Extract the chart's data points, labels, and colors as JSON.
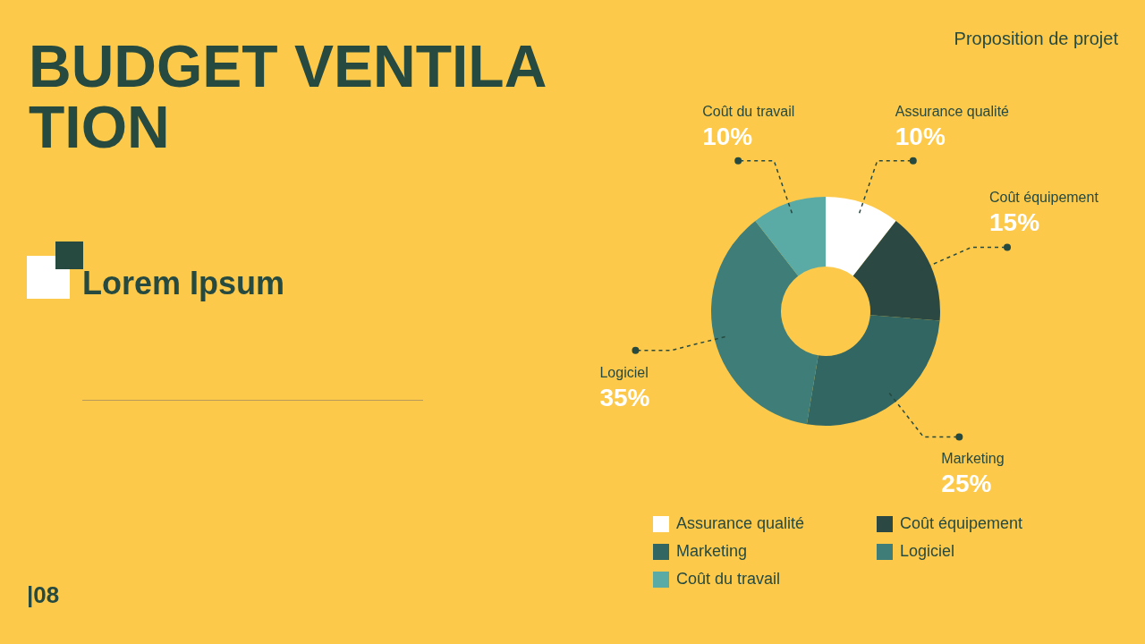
{
  "chart_data": {
    "type": "donut",
    "title": "BUDGET VENTILATION",
    "subtitle": "Proposition de projet",
    "annotations": [
      "Lorem Ipsum",
      "|08"
    ],
    "categories": [
      "Assurance qualité",
      "Coût équipement",
      "Marketing",
      "Logiciel",
      "Coût du travail"
    ],
    "values": [
      10,
      15,
      25,
      35,
      10
    ],
    "colors": [
      "#ffffff",
      "#2b4842",
      "#326662",
      "#3f7e78",
      "#5aaaa5"
    ],
    "value_labels": [
      "10%",
      "15%",
      "25%",
      "35%",
      "10%"
    ],
    "legend": "bottom"
  }
}
